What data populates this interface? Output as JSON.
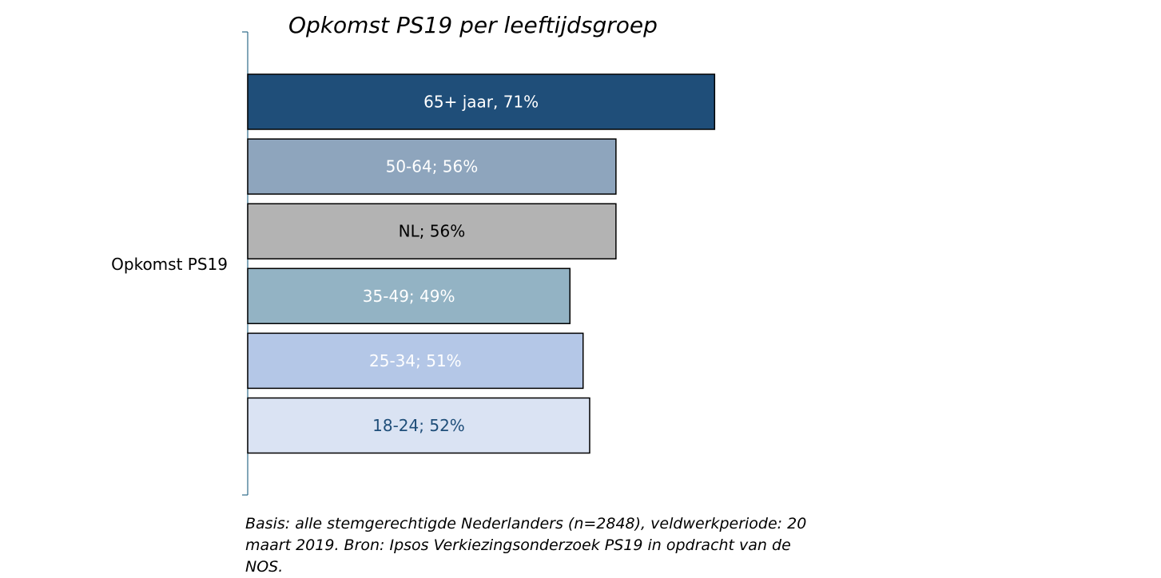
{
  "chart_data": {
    "type": "bar",
    "orientation": "horizontal",
    "title": "Opkomst PS19 per leeftijdsgroep",
    "category_label": "Opkomst PS19",
    "series": [
      {
        "label": "65+ jaar, 71%",
        "value": 71,
        "color": "#1f4e79",
        "text_color": "#ffffff"
      },
      {
        "label": "50-64; 56%",
        "value": 56,
        "color": "#8ea5bd",
        "text_color": "#ffffff"
      },
      {
        "label": "NL; 56%",
        "value": 56,
        "color": "#b3b3b3",
        "text_color": "#000000"
      },
      {
        "label": "35-49; 49%",
        "value": 49,
        "color": "#93b3c4",
        "text_color": "#ffffff"
      },
      {
        "label": "25-34; 51%",
        "value": 51,
        "color": "#b4c7e7",
        "text_color": "#ffffff"
      },
      {
        "label": "18-24; 52%",
        "value": 52,
        "color": "#dae3f3",
        "text_color": "#1f4e79"
      }
    ],
    "grid": false,
    "legend": "none"
  },
  "footnote": {
    "line1": "Basis: alle stemgerechtigde Nederlanders (n=2848), veldwerkperiode: 20",
    "line2": "maart 2019. Bron: Ipsos Verkiezingsonderzoek PS19 in opdracht van de NOS."
  }
}
